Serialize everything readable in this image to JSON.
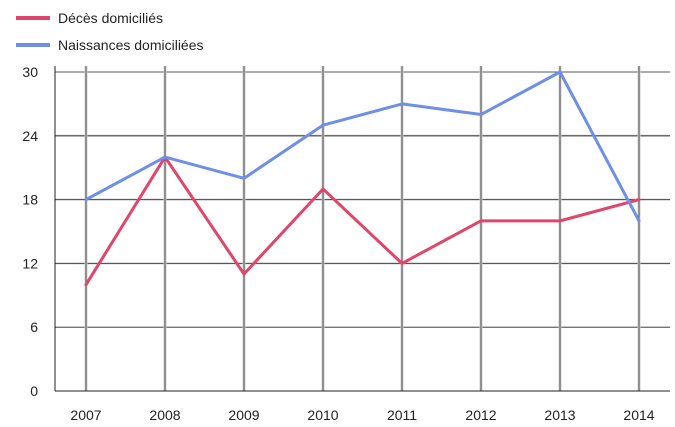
{
  "chart_data": {
    "type": "line",
    "title": "",
    "xlabel": "",
    "ylabel": "",
    "x": [
      "2007",
      "2008",
      "2009",
      "2010",
      "2011",
      "2012",
      "2013",
      "2014"
    ],
    "y_ticks": [
      "0",
      "6",
      "12",
      "18",
      "24",
      "30"
    ],
    "ylim": [
      0,
      30
    ],
    "grid": true,
    "legend_position": "top-left",
    "series": [
      {
        "name": "Décès domiciliés",
        "color": "#e0466a",
        "values": [
          10,
          22,
          11,
          19,
          12,
          16,
          16,
          18
        ]
      },
      {
        "name": "Naissances domiciliées",
        "color": "#6f8fe6",
        "values": [
          18,
          22,
          20,
          25,
          27,
          26,
          30,
          16
        ]
      }
    ]
  }
}
